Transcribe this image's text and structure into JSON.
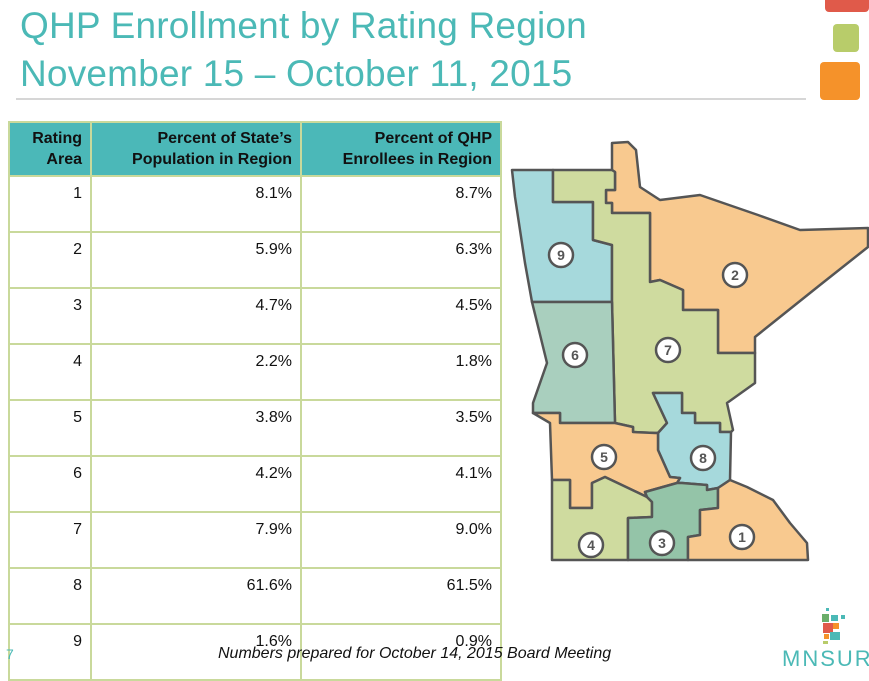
{
  "title": {
    "line1": "QHP Enrollment by Rating Region",
    "line2": "November 15 – October 11, 2015"
  },
  "table": {
    "headers": [
      "Rating Area",
      "Percent of State’s Population in Region",
      "Percent of QHP Enrollees in Region"
    ],
    "header_lines": [
      [
        "Rating",
        "Area"
      ],
      [
        "Percent of State’s",
        "Population in Region"
      ],
      [
        "Percent of QHP",
        "Enrollees in Region"
      ]
    ],
    "rows": [
      [
        "1",
        "8.1%",
        "8.7%"
      ],
      [
        "2",
        "5.9%",
        "6.3%"
      ],
      [
        "3",
        "4.7%",
        "4.5%"
      ],
      [
        "4",
        "2.2%",
        "1.8%"
      ],
      [
        "5",
        "3.8%",
        "3.5%"
      ],
      [
        "6",
        "4.2%",
        "4.1%"
      ],
      [
        "7",
        "7.9%",
        "9.0%"
      ],
      [
        "8",
        "61.6%",
        "61.5%"
      ],
      [
        "9",
        "1.6%",
        "0.9%"
      ]
    ]
  },
  "map": {
    "region_labels": [
      "1",
      "2",
      "3",
      "4",
      "5",
      "6",
      "7",
      "8",
      "9"
    ]
  },
  "footer": {
    "page_number": "7",
    "note": "Numbers prepared for October 14, 2015 Board Meeting",
    "logo": "MNSURE"
  },
  "colors": {
    "accent": "#4bb9b6",
    "header_bg": "#4bb8b8",
    "orange": "#f8c98f",
    "green": "#cfdb9f",
    "blue": "#a6d9dc",
    "teal": "#a9cfbe",
    "sea": "#94c4a8",
    "deco_red": "#e05a4a",
    "deco_green": "#b8cc6a",
    "deco_orange": "#f5922a"
  }
}
